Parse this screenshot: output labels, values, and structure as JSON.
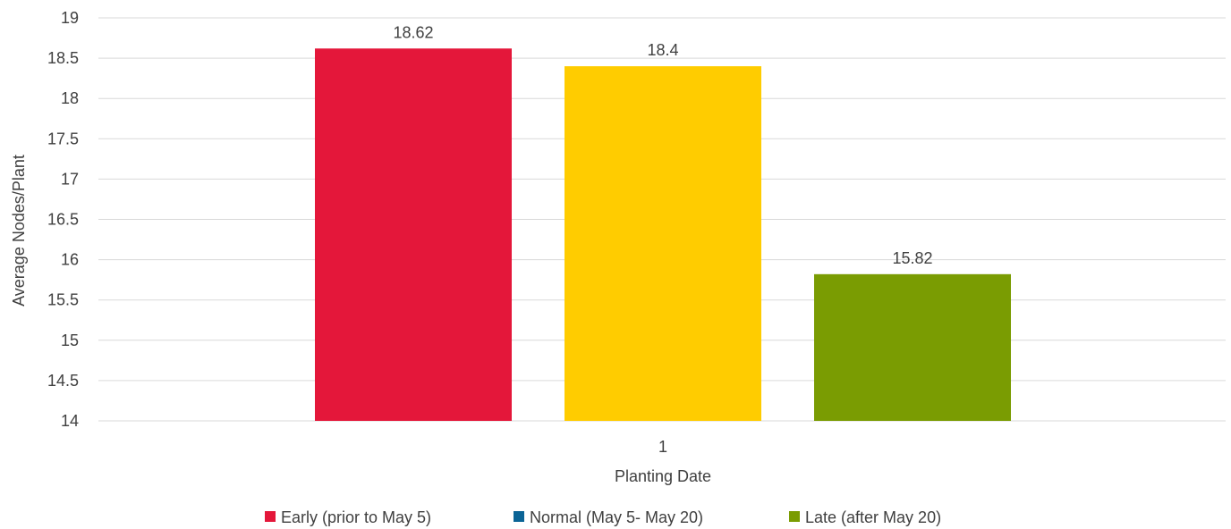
{
  "chart_data": {
    "type": "bar",
    "categories": [
      "1"
    ],
    "series": [
      {
        "name": "Early (prior to May 5)",
        "values": [
          18.62
        ],
        "color": "#E4173A"
      },
      {
        "name": "Normal (May 5- May 20)",
        "values": [
          18.4
        ],
        "color": "#FFCC00",
        "legend_color": "#0B6496"
      },
      {
        "name": "Late (after May 20)",
        "values": [
          15.82
        ],
        "color": "#7A9C02"
      }
    ],
    "data_labels": [
      "18.62",
      "18.4",
      "15.82"
    ],
    "title": "",
    "xlabel": "Planting Date",
    "ylabel": "Average Nodes/Plant",
    "ylim": [
      14,
      19
    ],
    "yticks": [
      14,
      14.5,
      15,
      15.5,
      16,
      16.5,
      17,
      17.5,
      18,
      18.5,
      19
    ],
    "ytick_labels": [
      "14",
      "14.5",
      "15",
      "15.5",
      "16",
      "16.5",
      "17",
      "17.5",
      "18",
      "18.5",
      "19"
    ],
    "grid": true,
    "legend_position": "bottom",
    "gridline_color": "#D9D9D9"
  }
}
